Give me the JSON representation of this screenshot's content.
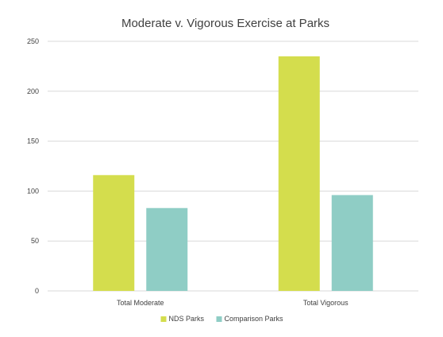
{
  "chart_data": {
    "type": "bar",
    "title": "Moderate v. Vigorous Exercise at Parks",
    "categories": [
      "Total Moderate",
      "Total Vigorous"
    ],
    "series": [
      {
        "name": "NDS Parks",
        "values": [
          116,
          235
        ],
        "color": "#d4dd4d"
      },
      {
        "name": "Comparison Parks",
        "values": [
          83,
          96
        ],
        "color": "#8fcdc5"
      }
    ],
    "ylim": [
      0,
      250
    ],
    "yticks": [
      0,
      50,
      100,
      150,
      200,
      250
    ],
    "grid": true,
    "legend": "bottom"
  }
}
